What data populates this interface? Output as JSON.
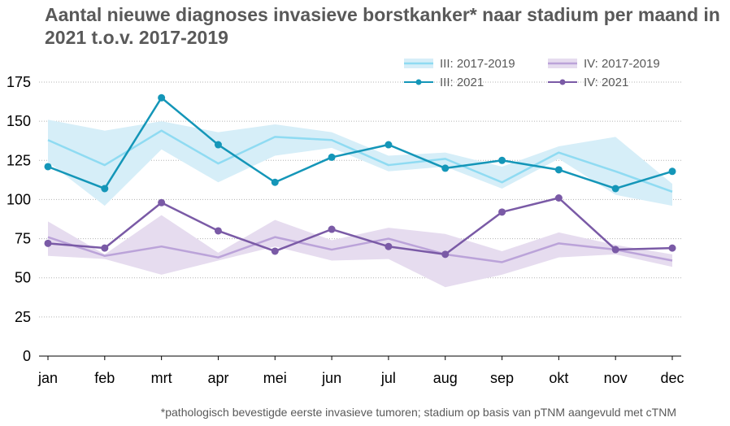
{
  "chart_data": {
    "type": "line",
    "title": "Aantal nieuwe diagnoses invasieve borstkanker* naar stadium per maand in 2021 t.o.v. 2017-2019",
    "footnote": "*pathologisch bevestigde eerste invasieve tumoren; stadium op basis van pTNM aangevuld met cTNM",
    "categories": [
      "jan",
      "feb",
      "mrt",
      "apr",
      "mei",
      "jun",
      "jul",
      "aug",
      "sep",
      "okt",
      "nov",
      "dec"
    ],
    "ylim": [
      0,
      175
    ],
    "yticks": [
      0,
      25,
      50,
      75,
      100,
      125,
      150,
      175
    ],
    "grid": true,
    "legend_position": "top-right",
    "bands": [
      {
        "name": "III: 2017-2019",
        "color_fill": "#d6eef8",
        "color_line": "#8fdbf2",
        "mean": [
          138,
          122,
          144,
          123,
          140,
          138,
          122,
          126,
          111,
          130,
          118,
          105
        ],
        "min": [
          124,
          96,
          132,
          111,
          128,
          133,
          118,
          121,
          107,
          126,
          103,
          96
        ],
        "max": [
          151,
          144,
          150,
          143,
          148,
          143,
          128,
          130,
          121,
          134,
          140,
          110
        ]
      },
      {
        "name": "IV: 2017-2019",
        "color_fill": "#e6dcef",
        "color_line": "#bba3d9",
        "mean": [
          76,
          64,
          70,
          63,
          76,
          68,
          75,
          65,
          60,
          72,
          68,
          61
        ],
        "min": [
          64,
          62,
          52,
          61,
          70,
          61,
          62,
          44,
          52,
          63,
          65,
          57
        ],
        "max": [
          86,
          65,
          90,
          66,
          87,
          74,
          82,
          78,
          67,
          79,
          71,
          65
        ]
      }
    ],
    "series": [
      {
        "name": "III: 2021",
        "color": "#1496b8",
        "values": [
          121,
          107,
          165,
          135,
          111,
          127,
          135,
          120,
          125,
          119,
          107,
          118
        ]
      },
      {
        "name": "IV: 2021",
        "color": "#7a5aa6",
        "values": [
          72,
          69,
          98,
          80,
          67,
          81,
          70,
          65,
          92,
          101,
          68,
          69
        ]
      }
    ],
    "legend": [
      {
        "label": "III: 2017-2019",
        "kind": "band",
        "ref": "III: 2017-2019"
      },
      {
        "label": "IV: 2017-2019",
        "kind": "band",
        "ref": "IV: 2017-2019"
      },
      {
        "label": "III: 2021",
        "kind": "line",
        "ref": "III: 2021"
      },
      {
        "label": "IV: 2021",
        "kind": "line",
        "ref": "IV: 2021"
      }
    ]
  }
}
